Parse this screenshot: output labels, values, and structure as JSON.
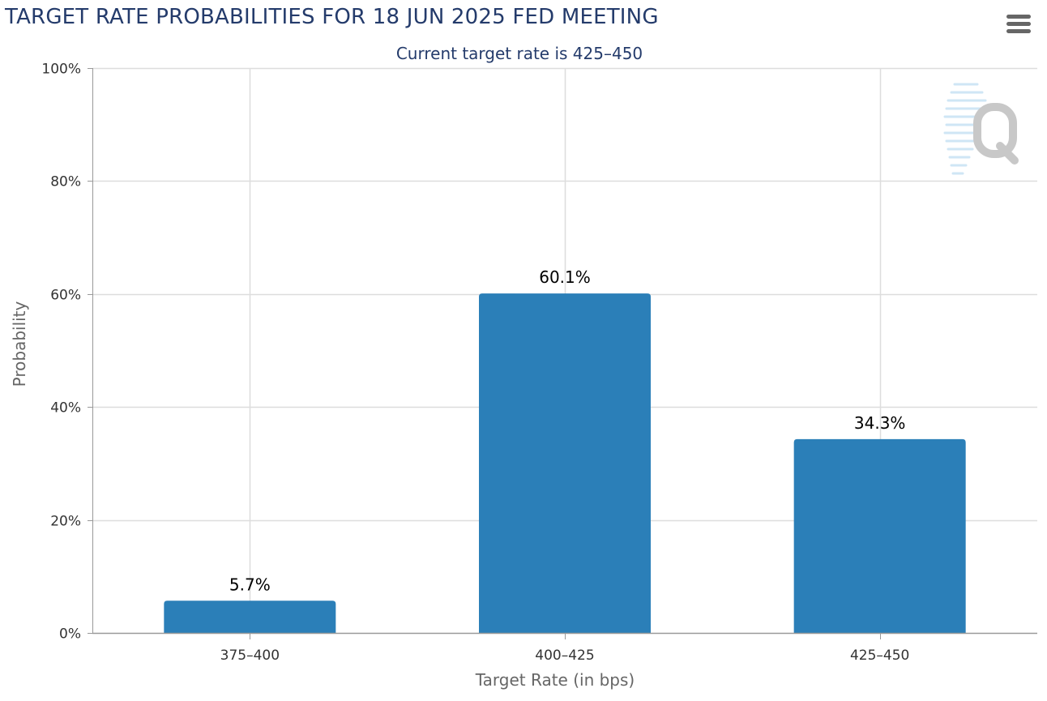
{
  "header": {
    "title": "TARGET RATE PROBABILITIES FOR 18 JUN 2025 FED MEETING",
    "subtitle": "Current target rate is 425–450",
    "menu_icon": "hamburger-menu-icon"
  },
  "watermark": {
    "icon": "q-logo-icon",
    "letter": "Q"
  },
  "colors": {
    "bar": "#2b7fb8",
    "title": "#243b6b",
    "grid": "#dddddd",
    "axis_line": "#999999",
    "watermark": "#c8c8c8",
    "watermark_lines": "#cfe6f5"
  },
  "chart_data": {
    "type": "bar",
    "title": "TARGET RATE PROBABILITIES FOR 18 JUN 2025 FED MEETING",
    "subtitle": "Current target rate is 425–450",
    "categories": [
      "375–400",
      "400–425",
      "425–450"
    ],
    "values": [
      5.7,
      60.1,
      34.3
    ],
    "data_labels": [
      "5.7%",
      "60.1%",
      "34.3%"
    ],
    "xlabel": "Target Rate (in bps)",
    "ylabel": "Probability",
    "ylim": [
      0,
      100
    ],
    "yticks": [
      0,
      20,
      40,
      60,
      80,
      100
    ],
    "ytick_labels": [
      "0%",
      "20%",
      "40%",
      "60%",
      "80%",
      "100%"
    ],
    "grid": true,
    "legend": "none"
  }
}
